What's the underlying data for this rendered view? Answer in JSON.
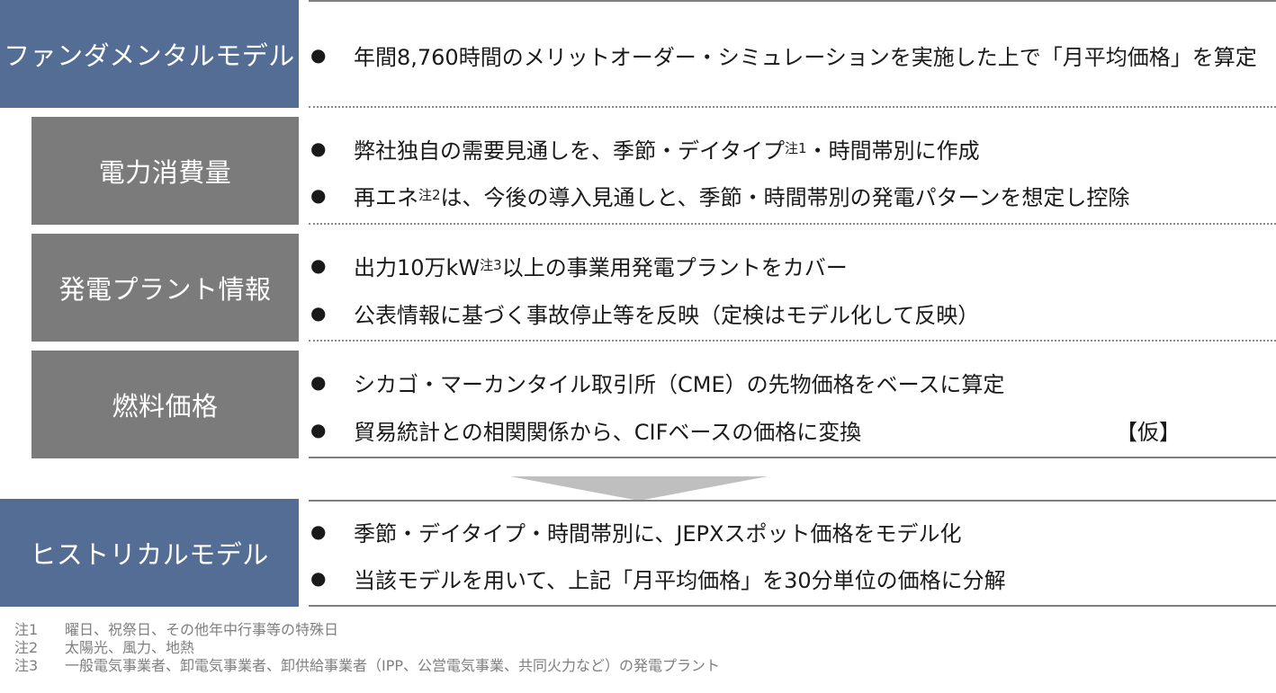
{
  "sections": [
    {
      "id": "fundamental",
      "label": "ファンダメンタルモデル",
      "color": "#536d95",
      "items": [
        {
          "text": "年間8,760時間のメリットオーダー・シミュレーションを実施した上で「月平均価格」を算定"
        }
      ]
    },
    {
      "id": "consumption",
      "label": "電力消費量",
      "color": "#7b7b7b",
      "items": [
        {
          "pre": "弊社独自の需要見通しを、季節・デイタイプ",
          "sup": "注1",
          "post": "・時間帯別に作成"
        },
        {
          "pre": "再エネ",
          "sup": "注2",
          "post": "は、今後の導入見通しと、季節・時間帯別の発電パターンを想定し控除"
        }
      ]
    },
    {
      "id": "plant",
      "label": "発電プラント情報",
      "color": "#7b7b7b",
      "items": [
        {
          "pre": "出力10万kW",
          "sup": "注3",
          "post": "以上の事業用発電プラントをカバー"
        },
        {
          "text": "公表情報に基づく事故停止等を反映（定検はモデル化して反映）"
        }
      ]
    },
    {
      "id": "fuel",
      "label": "燃料価格",
      "color": "#7b7b7b",
      "items": [
        {
          "text": "シカゴ・マーカンタイル取引所（CME）の先物価格をベースに算定"
        },
        {
          "text": "貿易統計との相関関係から、CIFベースの価格に変換"
        }
      ],
      "tag": "【仮】"
    },
    {
      "id": "historical",
      "label": "ヒストリカルモデル",
      "color": "#536d95",
      "items": [
        {
          "text": "季節・デイタイプ・時間帯別に、JEPXスポット価格をモデル化"
        },
        {
          "text": "当該モデルを用いて、上記「月平均価格」を30分単位の価格に分解"
        }
      ]
    }
  ],
  "bullet": "●",
  "notes": [
    {
      "key": "注1",
      "text": "曜日、祝祭日、その他年中行事等の特殊日"
    },
    {
      "key": "注2",
      "text": "太陽光、風力、地熱"
    },
    {
      "key": "注3",
      "text": "一般電気事業者、卸電気事業者、卸供給事業者（IPP、公営電気事業、共同火力など）の発電プラント"
    }
  ]
}
